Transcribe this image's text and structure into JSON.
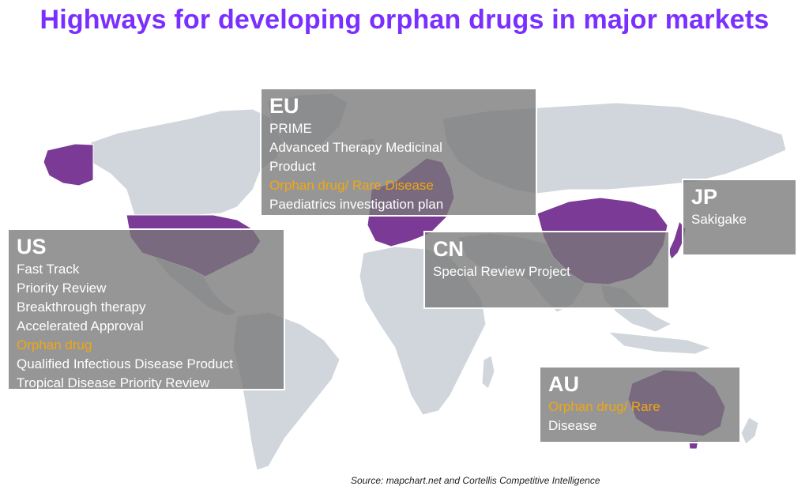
{
  "title": "Highways for developing orphan drugs in major markets",
  "source": "Source: mapchart.net and Cortellis Competitive Intelligence",
  "colors": {
    "title": "#7a2fff",
    "highlight_land": "#7b3a96",
    "land": "#d0d6dc",
    "box": "#787878",
    "orphan_text": "#f0a712"
  },
  "regions": [
    {
      "code": "EU",
      "items": [
        {
          "text": "PRIME",
          "orphan": false
        },
        {
          "text": "Advanced Therapy Medicinal",
          "orphan": false
        },
        {
          "text": "Product",
          "orphan": false
        },
        {
          "text": "Orphan drug/ Rare Disease",
          "orphan": true
        },
        {
          "text": "Paediatrics investigation plan",
          "orphan": false
        }
      ]
    },
    {
      "code": "US",
      "items": [
        {
          "text": "Fast Track",
          "orphan": false
        },
        {
          "text": "Priority Review",
          "orphan": false
        },
        {
          "text": "Breakthrough therapy",
          "orphan": false
        },
        {
          "text": "Accelerated Approval",
          "orphan": false
        },
        {
          "text": "Orphan drug",
          "orphan": true
        },
        {
          "text": "Qualified Infectious Disease Product",
          "orphan": false
        },
        {
          "text": "Tropical Disease Priority Review",
          "orphan": false
        }
      ]
    },
    {
      "code": "JP",
      "items": [
        {
          "text": "Sakigake",
          "orphan": false
        }
      ]
    },
    {
      "code": "CN",
      "items": [
        {
          "text": "Special Review Project",
          "orphan": false
        }
      ]
    },
    {
      "code": "AU",
      "items": [
        {
          "text": "Orphan drug/ Rare",
          "orphan": true
        },
        {
          "text": "Disease",
          "orphan": false
        }
      ]
    }
  ]
}
